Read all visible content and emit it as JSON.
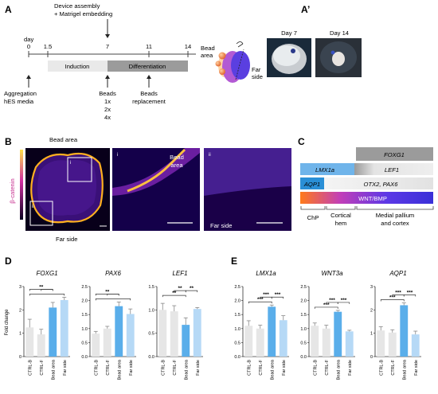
{
  "panel_labels": {
    "A": "A",
    "A2": "A’",
    "B": "B",
    "C": "C",
    "D": "D",
    "E": "E"
  },
  "panelA": {
    "day_label": "day",
    "days": [
      "0",
      "1.5",
      "7",
      "11",
      "14"
    ],
    "device_line1": "Device assembly",
    "device_line2": "+ Matrigel  embedding",
    "induction": "Induction",
    "differentiation": "Differentiation",
    "aggregation_line1": "Aggregation",
    "aggregation_line2": "hES media",
    "beads_label": "Beads",
    "beads_doses": [
      "1x",
      "2x",
      "4x"
    ],
    "beads_repl_line1": "Beads",
    "beads_repl_line2": "replacement",
    "bead_area_line1": "Bead",
    "bead_area_line2": "area",
    "far_side_line1": "Far",
    "far_side_line2": "side",
    "colors": {
      "induction": "#e9e9e9",
      "differentiation": "#9b9b9b"
    }
  },
  "panelA2": {
    "day7": "Day 7",
    "day14": "Day 14"
  },
  "panelB": {
    "bead_area": "Bead area",
    "far_side": "Far side",
    "catenin": "β-catenin",
    "zoom_i": "i",
    "zoom_ii": "ii",
    "zoom_bead_area_line1": "Bead",
    "zoom_bead_area_line2": "area",
    "zoom_far_side": "Far side",
    "colors": {
      "colorbar_top": "#ffe14a",
      "colorbar_mid": "#d02ea0",
      "colorbar_bottom": "#0a0020"
    }
  },
  "panelC": {
    "foxg1": "FOXG1",
    "lmx1a": "LMX1a",
    "lef1": "LEF1",
    "aqp1": "AQP1",
    "otx2_pax6": "OTX2, PAX6",
    "wnt_bmp": "WNT/BMP",
    "chp": "ChP",
    "cortical_line1": "Cortical",
    "cortical_line2": "hem",
    "medial_line1": "Medial pallium",
    "medial_line2": "and cortex",
    "colors": {
      "foxg1": "#9b9b9b",
      "lmx1a": "#6fb4ea",
      "aqp1": "#2a8fd6",
      "otx2": "#e8e8e8"
    }
  },
  "chart_data": [
    {
      "type": "bar",
      "title": "FOXG1",
      "categories": [
        "CTRL-B",
        "CTRL-F",
        "Bead area",
        "Far side"
      ],
      "values": [
        1.25,
        0.95,
        2.1,
        2.42
      ],
      "errors": [
        0.35,
        0.22,
        0.22,
        0.12
      ],
      "ylim": [
        0,
        3
      ],
      "yticks": [
        "0",
        "1",
        "2",
        "3"
      ],
      "ylabel": "Fold change",
      "sig": [
        "**"
      ]
    },
    {
      "type": "bar",
      "title": "PAX6",
      "categories": [
        "CTRL-B",
        "CTRL-F",
        "Bead area",
        "Far side"
      ],
      "values": [
        0.82,
        1.0,
        1.8,
        1.52
      ],
      "errors": [
        0.08,
        0.08,
        0.15,
        0.18
      ],
      "ylim": [
        0,
        2.5
      ],
      "yticks": [
        "0.0",
        "0.5",
        "1.0",
        "1.5",
        "2.0",
        "2.5"
      ],
      "sig": [
        "**"
      ]
    },
    {
      "type": "bar",
      "title": "LEF1",
      "categories": [
        "CTRL-B",
        "CTRL-F",
        "Bead area",
        "Far side"
      ],
      "values": [
        1.0,
        0.97,
        0.68,
        1.02
      ],
      "errors": [
        0.14,
        0.12,
        0.15,
        0.03
      ],
      "ylim": [
        0,
        1.5
      ],
      "yticks": [
        "0.0",
        "0.5",
        "1.0",
        "1.5"
      ],
      "sig": [
        "**",
        "**",
        "**"
      ]
    },
    {
      "type": "bar",
      "title": "LMX1a",
      "categories": [
        "CTRL-B",
        "CTRL-F",
        "Bead area",
        "Far side"
      ],
      "values": [
        1.1,
        1.0,
        1.78,
        1.3
      ],
      "errors": [
        0.18,
        0.12,
        0.06,
        0.16
      ],
      "ylim": [
        0,
        2.5
      ],
      "yticks": [
        "0.0",
        "0.5",
        "1.0",
        "1.5",
        "2.0",
        "2.5"
      ],
      "sig": [
        "***",
        "***",
        "***"
      ]
    },
    {
      "type": "bar",
      "title": "WNT3a",
      "categories": [
        "CTRL-B",
        "CTRL-F",
        "Bead area",
        "Far side"
      ],
      "values": [
        1.1,
        1.0,
        1.6,
        0.9
      ],
      "errors": [
        0.1,
        0.12,
        0.05,
        0.04
      ],
      "ylim": [
        0,
        2.5
      ],
      "yticks": [
        "0.0",
        "0.5",
        "1.0",
        "1.5",
        "2.0",
        "2.5"
      ],
      "sig": [
        "***",
        "***",
        "***"
      ]
    },
    {
      "type": "bar",
      "title": "AQP1",
      "categories": [
        "CTRL-B",
        "CTRL-F",
        "Bead area",
        "Far side"
      ],
      "values": [
        1.12,
        1.03,
        2.2,
        0.95
      ],
      "errors": [
        0.16,
        0.12,
        0.1,
        0.14
      ],
      "ylim": [
        0,
        3
      ],
      "yticks": [
        "0",
        "1",
        "2",
        "3"
      ],
      "sig": [
        "***",
        "***",
        "***"
      ]
    }
  ],
  "bar_colors": [
    "#e6e6e6",
    "#e6e6e6",
    "#5aaeea",
    "#b6d9f6"
  ]
}
